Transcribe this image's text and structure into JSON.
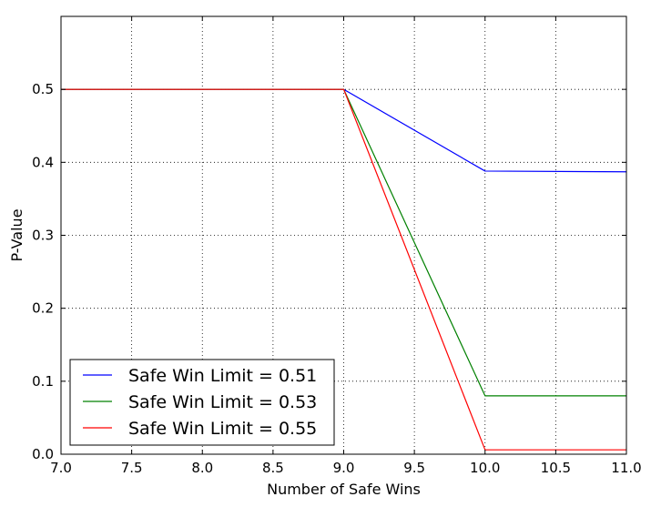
{
  "chart_data": {
    "type": "line",
    "title": "",
    "xlabel": "Number of Safe Wins",
    "ylabel": "P-Value",
    "xlim": [
      7.0,
      11.0
    ],
    "ylim": [
      0.0,
      0.6
    ],
    "xticks": [
      7.0,
      7.5,
      8.0,
      8.5,
      9.0,
      9.5,
      10.0,
      10.5,
      11.0
    ],
    "xtick_labels": [
      "7.0",
      "7.5",
      "8.0",
      "8.5",
      "9.0",
      "9.5",
      "10.0",
      "10.5",
      "11.0"
    ],
    "yticks": [
      0.0,
      0.1,
      0.2,
      0.3,
      0.4,
      0.5
    ],
    "ytick_labels": [
      "0.0",
      "0.1",
      "0.2",
      "0.3",
      "0.4",
      "0.5"
    ],
    "grid": true,
    "legend_position": "lower-left",
    "x": [
      7,
      8,
      9,
      10,
      11
    ],
    "series": [
      {
        "name": "Safe Win Limit = 0.51",
        "color": "#0000ff",
        "values": [
          0.5,
          0.5,
          0.5,
          0.388,
          0.387
        ]
      },
      {
        "name": "Safe Win Limit = 0.53",
        "color": "#008000",
        "values": [
          0.5,
          0.5,
          0.5,
          0.08,
          0.08
        ]
      },
      {
        "name": "Safe Win Limit = 0.55",
        "color": "#ff0000",
        "values": [
          0.5,
          0.5,
          0.5,
          0.006,
          0.006
        ]
      }
    ]
  }
}
